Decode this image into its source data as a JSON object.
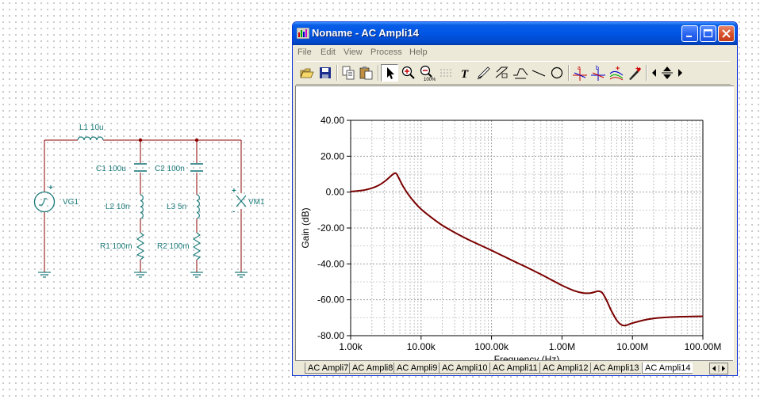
{
  "schematic": {
    "L1": "L1 10u",
    "C1": "C1 100u",
    "C2": "C2 100n",
    "L2": "L2 10n",
    "L3": "L3 5n",
    "R1": "R1 100m",
    "R2": "R2 100m",
    "VG1": "VG1",
    "VM1": "VM1",
    "plus": "+",
    "minus": "-"
  },
  "window": {
    "title": "Noname - AC Ampli14"
  },
  "menu": [
    "File",
    "Edit",
    "View",
    "Process",
    "Help"
  ],
  "toolbar_icons": [
    "open-icon",
    "save-icon",
    "copy-icon",
    "paste-icon",
    "pointer-icon",
    "zoom-in-icon",
    "zoom-100-icon",
    "text-icon",
    "pen-icon",
    "dimension-icon",
    "curve-icon",
    "line-icon",
    "ellipse-icon",
    "cursor-a-icon",
    "cursor-b-icon",
    "add-curve-icon",
    "probe-icon",
    "arrow-left-icon",
    "arrow-updown-icon",
    "arrow-right-icon"
  ],
  "colors": {
    "curve": "#7a0000",
    "schematic_wire": "#8b0000",
    "schematic_part": "#1b7a7a",
    "xp_blue": "#0055e5"
  },
  "chart_data": {
    "type": "line",
    "xlabel": "Frequency (Hz)",
    "ylabel": "Gain (dB)",
    "x_scale": "log",
    "xlim": [
      1000,
      100000000
    ],
    "ylim": [
      -80,
      40
    ],
    "x_ticks": [
      "1.00k",
      "10.00k",
      "100.00k",
      "1.00M",
      "10.00M",
      "100.00M"
    ],
    "y_ticks": [
      "40.00",
      "20.00",
      "0.00",
      "-20.00",
      "-40.00",
      "-60.00",
      "-80.00"
    ],
    "grid": true,
    "series": [
      {
        "x": [
          1000,
          1500,
          2000,
          2500,
          3000,
          3500,
          4000,
          4400,
          4800,
          5500,
          6500,
          8000,
          10000,
          15000,
          20000,
          30000,
          50000,
          100000,
          200000,
          300000,
          500000,
          700000,
          1000000,
          1500000,
          2000000,
          2500000,
          3000000,
          3300000,
          3700000,
          4200000,
          5000000,
          6000000,
          7000000,
          8000000,
          10000000,
          15000000,
          20000000,
          30000000,
          50000000,
          100000000
        ],
        "y": [
          0.3,
          1.0,
          2.2,
          3.8,
          5.8,
          8.0,
          10.0,
          10.5,
          8.0,
          3.5,
          -1.0,
          -5.5,
          -9.5,
          -15.0,
          -18.5,
          -22.5,
          -27.0,
          -32.5,
          -38.2,
          -41.5,
          -45.8,
          -48.8,
          -52.0,
          -55.0,
          -56.2,
          -56.3,
          -55.5,
          -55.2,
          -56.0,
          -59.5,
          -66.0,
          -71.5,
          -74.0,
          -74.3,
          -73.0,
          -71.2,
          -70.4,
          -69.8,
          -69.4,
          -69.2
        ]
      }
    ]
  },
  "tabs": [
    {
      "label": "AC Ampli7",
      "active": false
    },
    {
      "label": "AC Ampli8",
      "active": false
    },
    {
      "label": "AC Ampli9",
      "active": false
    },
    {
      "label": "AC Ampli10",
      "active": false
    },
    {
      "label": "AC Ampli11",
      "active": false
    },
    {
      "label": "AC Ampli12",
      "active": false
    },
    {
      "label": "AC Ampli13",
      "active": false
    },
    {
      "label": "AC Ampli14",
      "active": true
    }
  ]
}
